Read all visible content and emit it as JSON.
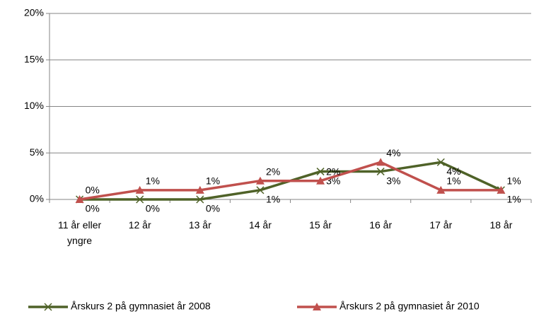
{
  "chart_data": {
    "type": "line",
    "categories": [
      "11 år eller yngre",
      "12 år",
      "13 år",
      "14 år",
      "15 år",
      "16 år",
      "17 år",
      "18 år"
    ],
    "series": [
      {
        "name": "Årskurs 2 på gymnasiet år 2008",
        "color": "#4f6228",
        "marker": "x",
        "values": [
          0,
          0,
          0,
          1,
          3,
          3,
          4,
          1
        ],
        "value_labels": [
          "0%",
          "0%",
          "0%",
          "1%",
          "3%",
          "3%",
          "4%",
          "1%"
        ]
      },
      {
        "name": "Årskurs 2 på gymnasiet år 2010",
        "color": "#c0504d",
        "marker": "triangle",
        "values": [
          0,
          1,
          1,
          2,
          2,
          4,
          1,
          1
        ],
        "value_labels": [
          "0%",
          "1%",
          "1%",
          "2%",
          "2%",
          "4%",
          "1%",
          "1%"
        ]
      }
    ],
    "ylim": [
      0,
      20
    ],
    "yticks": [
      {
        "value": 0,
        "label": "0%"
      },
      {
        "value": 5,
        "label": "5%"
      },
      {
        "value": 10,
        "label": "10%"
      },
      {
        "value": 15,
        "label": "15%"
      },
      {
        "value": 20,
        "label": "20%"
      }
    ],
    "grid": true,
    "legend": "bottom"
  }
}
